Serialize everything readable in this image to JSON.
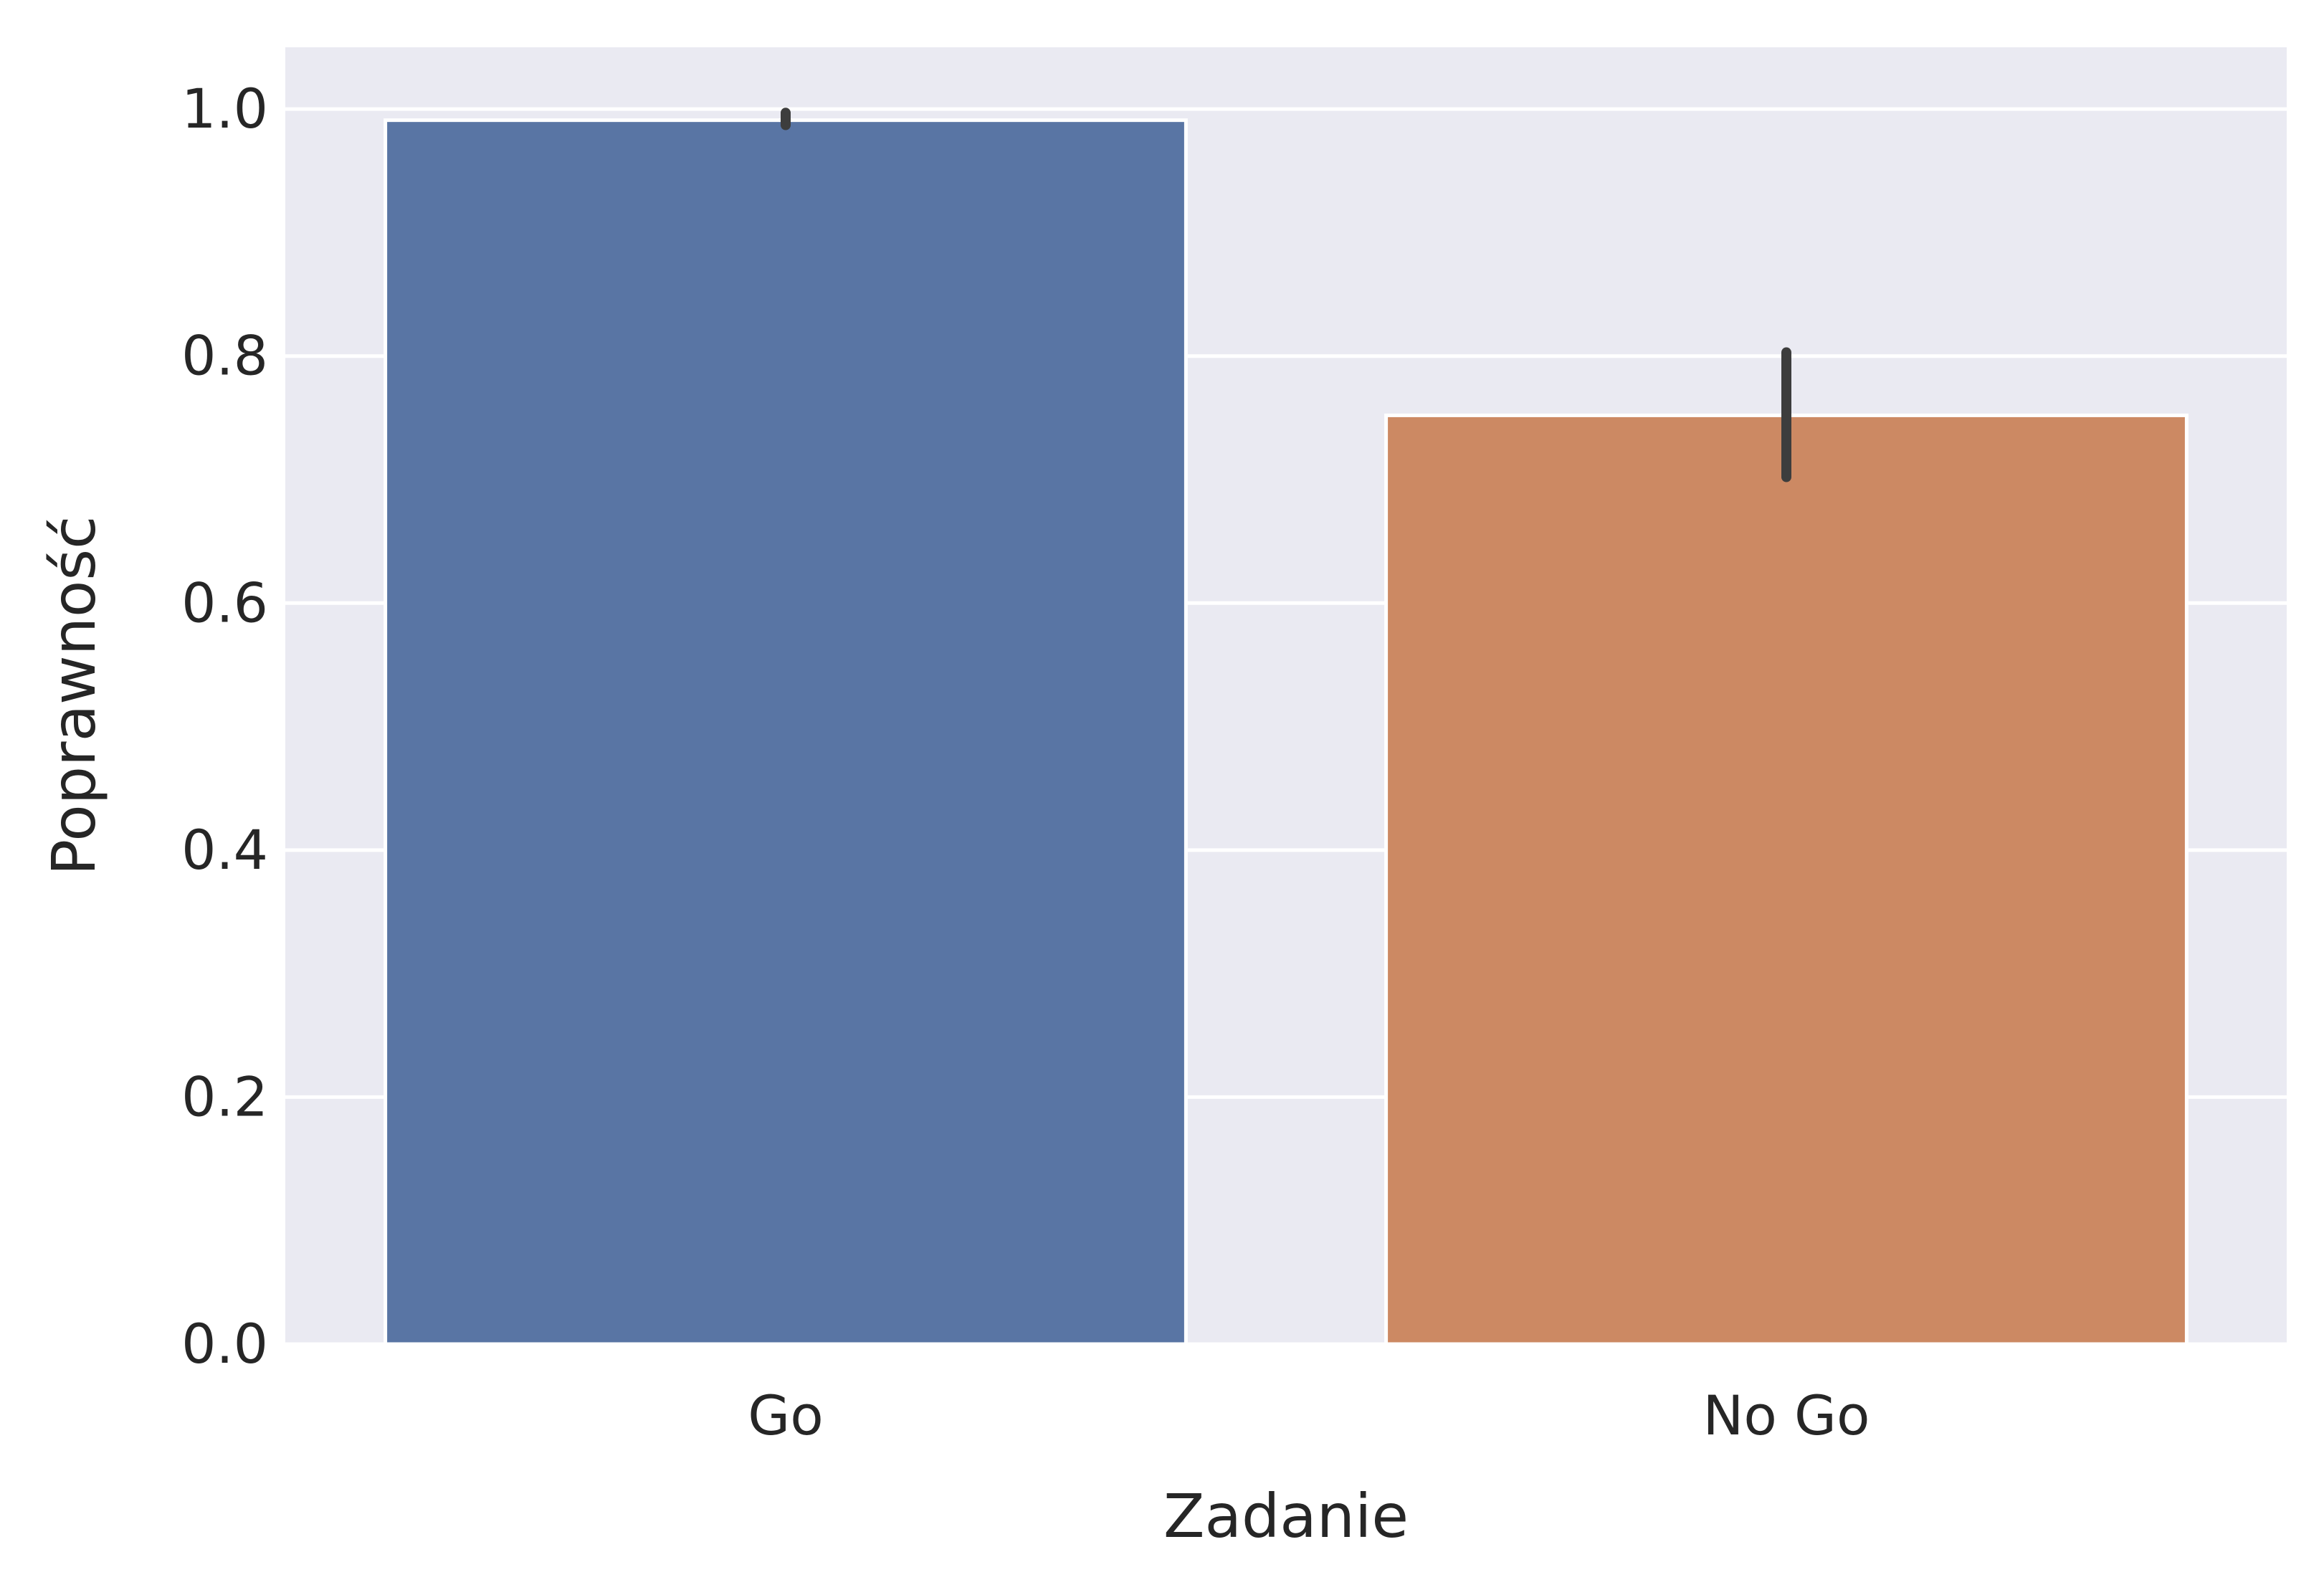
{
  "chart_data": {
    "type": "bar",
    "title": "",
    "xlabel": "Zadanie",
    "ylabel": "Poprawność",
    "categories": [
      "Go",
      "No Go"
    ],
    "values": [
      0.991,
      0.752
    ],
    "error_bars": [
      {
        "low": 0.987,
        "high": 0.997
      },
      {
        "low": 0.702,
        "high": 0.803
      }
    ],
    "ylim": [
      0,
      1.05
    ],
    "yticks": [
      0.0,
      0.2,
      0.4,
      0.6,
      0.8,
      1.0
    ],
    "ytick_labels": [
      "0.0",
      "0.2",
      "0.4",
      "0.6",
      "0.8",
      "1.0"
    ],
    "grid": true,
    "colors": {
      "background": "#EAEAF2",
      "grid": "#FFFFFF",
      "bars": [
        "#5975A4",
        "#CC8963"
      ],
      "error_bar": "#3D3D3D",
      "text": "#262626"
    }
  }
}
